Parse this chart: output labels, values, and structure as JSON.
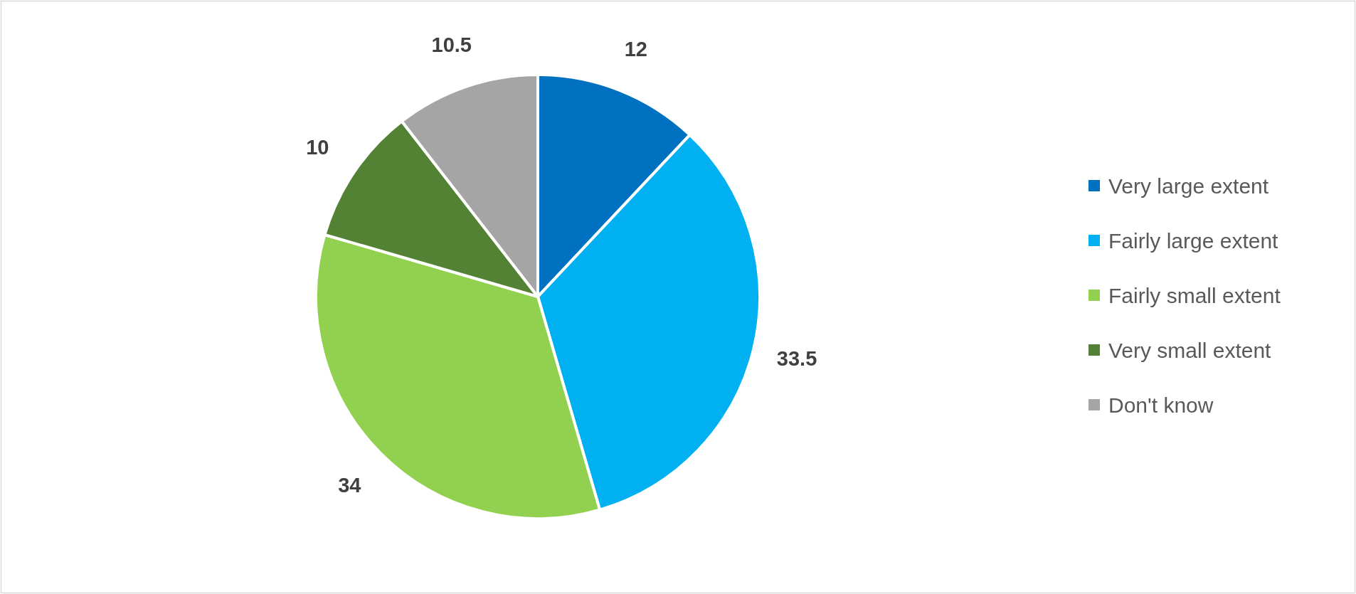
{
  "chart_data": {
    "type": "pie",
    "categories": [
      "Very large extent",
      "Fairly large extent",
      "Fairly small extent",
      "Very small extent",
      "Don't know"
    ],
    "values": [
      12,
      33.5,
      34,
      10,
      10.5
    ],
    "colors": [
      "#0070c0",
      "#00b0f0",
      "#92d050",
      "#548235",
      "#a5a5a5"
    ],
    "data_labels": true,
    "legend": "right"
  }
}
